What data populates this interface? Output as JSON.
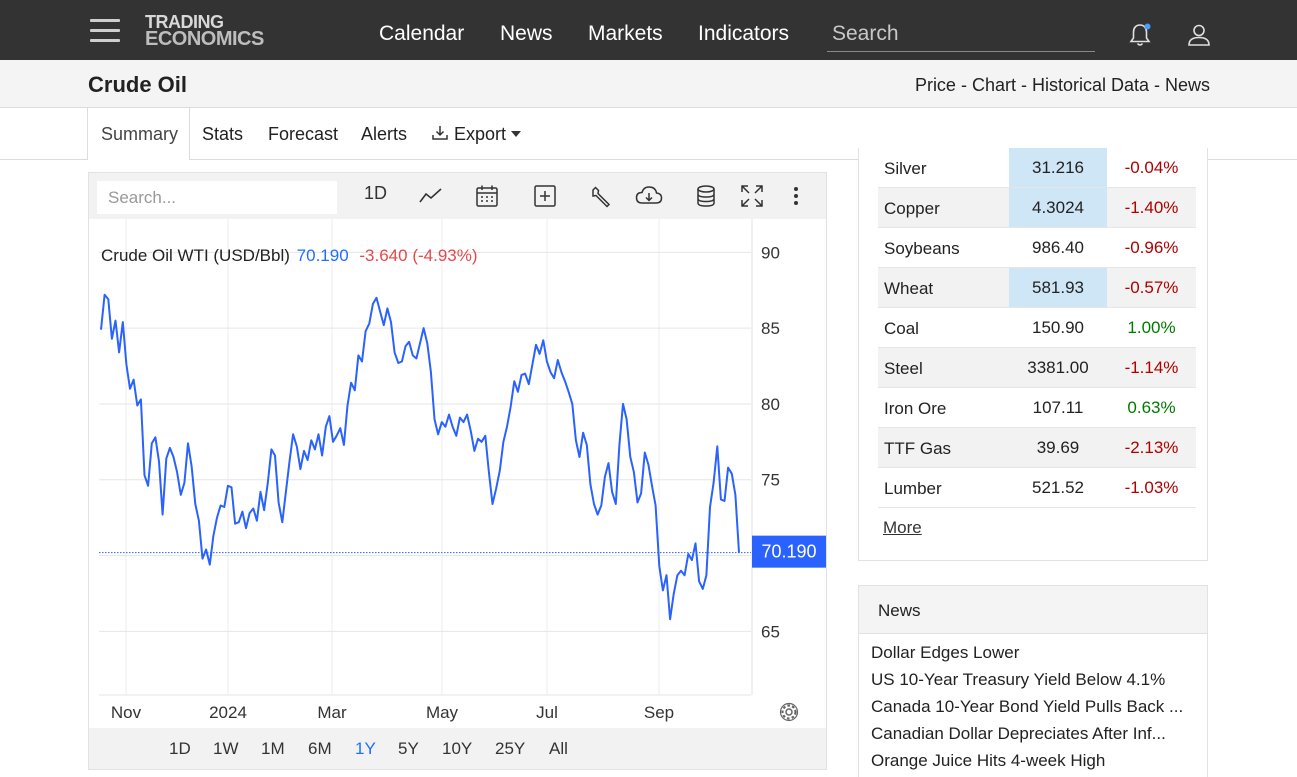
{
  "nav": {
    "logo_line1": "TRADING",
    "logo_line2": "ECONOMICS",
    "links": [
      "Calendar",
      "News",
      "Markets",
      "Indicators"
    ],
    "search_placeholder": "Search"
  },
  "titlebar": {
    "title": "Crude Oil",
    "links": "Price - Chart - Historical Data - News"
  },
  "tabs": {
    "items": [
      "Summary",
      "Stats",
      "Forecast",
      "Alerts",
      "Export"
    ],
    "active": "Summary"
  },
  "chart_toolbar": {
    "search_placeholder": "Search...",
    "interval": "1D",
    "icons": [
      "line-chart-icon",
      "calendar-icon",
      "add-box-icon",
      "wrench-icon",
      "download-cloud-icon",
      "database-icon",
      "fullscreen-icon",
      "more-vertical-icon"
    ]
  },
  "chart_legend": {
    "label": "Crude Oil WTI (USD/Bbl)",
    "value": "70.190",
    "change": "-3.640 (-4.93%)"
  },
  "range_buttons": [
    "1D",
    "1W",
    "1M",
    "6M",
    "1Y",
    "5Y",
    "10Y",
    "25Y",
    "All"
  ],
  "range_active": "1Y",
  "chart_data": {
    "type": "line",
    "title": "Crude Oil WTI (USD/Bbl)",
    "xlabel": "",
    "ylabel": "",
    "x_ticks": [
      "Nov",
      "2024",
      "Mar",
      "May",
      "Jul",
      "Sep"
    ],
    "y_ticks": [
      65,
      70,
      75,
      80,
      85,
      90
    ],
    "ylim": [
      60.8,
      92.2
    ],
    "current_value_label": "70.190",
    "current_value": 70.19,
    "grid": true,
    "series": [
      {
        "color": "#2962ff",
        "values": [
          84.9,
          87.2,
          86.9,
          84.3,
          85.5,
          83.4,
          85.4,
          82.6,
          81.0,
          81.6,
          79.9,
          80.3,
          75.3,
          74.6,
          77.4,
          77.8,
          76.2,
          72.7,
          76.4,
          77.1,
          76.5,
          75.5,
          74.0,
          74.8,
          77.4,
          75.9,
          73.4,
          72.3,
          69.8,
          70.4,
          69.4,
          71.3,
          72.5,
          73.3,
          73.2,
          74.6,
          74.5,
          72.1,
          72.2,
          72.9,
          71.8,
          72.8,
          73.1,
          72.3,
          74.2,
          73.0,
          74.8,
          77.0,
          76.6,
          73.5,
          72.2,
          74.2,
          76.2,
          78.0,
          77.2,
          75.7,
          76.9,
          76.3,
          77.6,
          77.0,
          78.0,
          76.6,
          78.5,
          79.2,
          77.5,
          77.9,
          78.4,
          77.3,
          79.9,
          81.4,
          80.9,
          83.2,
          82.8,
          84.8,
          85.3,
          86.6,
          87.0,
          86.1,
          85.2,
          86.3,
          85.4,
          83.4,
          82.7,
          82.8,
          83.8,
          84.1,
          83.2,
          83.0,
          84.0,
          85.0,
          84.0,
          82.1,
          79.0,
          78.0,
          78.8,
          78.5,
          79.3,
          78.5,
          77.9,
          79.1,
          78.8,
          79.3,
          78.2,
          76.9,
          77.7,
          77.5,
          77.9,
          75.5,
          73.4,
          74.4,
          75.6,
          77.5,
          78.5,
          79.8,
          81.5,
          80.8,
          81.9,
          82.0,
          81.3,
          82.6,
          83.9,
          83.3,
          84.2,
          82.8,
          82.1,
          81.7,
          82.9,
          82.1,
          81.5,
          80.8,
          80.0,
          77.6,
          76.5,
          78.1,
          77.3,
          74.7,
          73.4,
          72.7,
          73.3,
          75.2,
          76.1,
          74.2,
          73.4,
          77.3,
          80.0,
          79.0,
          76.5,
          75.5,
          73.5,
          74.1,
          76.8,
          76.0,
          74.6,
          73.3,
          69.3,
          67.7,
          68.7,
          65.8,
          67.5,
          68.7,
          69.0,
          68.7,
          70.1,
          69.7,
          70.8,
          68.3,
          67.8,
          68.7,
          73.2,
          74.8,
          77.2,
          73.7,
          73.6,
          75.8,
          75.4,
          74.0,
          70.19
        ]
      }
    ]
  },
  "commodities": [
    {
      "name": "Silver",
      "price": "31.216",
      "change": "-0.04%",
      "highlight": true,
      "direction": "neg"
    },
    {
      "name": "Copper",
      "price": "4.3024",
      "change": "-1.40%",
      "highlight": true,
      "direction": "neg"
    },
    {
      "name": "Soybeans",
      "price": "986.40",
      "change": "-0.96%",
      "highlight": false,
      "direction": "neg"
    },
    {
      "name": "Wheat",
      "price": "581.93",
      "change": "-0.57%",
      "highlight": true,
      "direction": "neg"
    },
    {
      "name": "Coal",
      "price": "150.90",
      "change": "1.00%",
      "highlight": false,
      "direction": "pos"
    },
    {
      "name": "Steel",
      "price": "3381.00",
      "change": "-1.14%",
      "highlight": false,
      "direction": "neg"
    },
    {
      "name": "Iron Ore",
      "price": "107.11",
      "change": "0.63%",
      "highlight": false,
      "direction": "pos"
    },
    {
      "name": "TTF Gas",
      "price": "39.69",
      "change": "-2.13%",
      "highlight": false,
      "direction": "neg"
    },
    {
      "name": "Lumber",
      "price": "521.52",
      "change": "-1.03%",
      "highlight": false,
      "direction": "neg"
    }
  ],
  "commodities_more": "More",
  "news": {
    "header": "News",
    "items": [
      "Dollar Edges Lower",
      "US 10-Year Treasury Yield Below 4.1%",
      "Canada 10-Year Bond Yield Pulls Back ...",
      "Canadian Dollar Depreciates After Inf...",
      "Orange Juice Hits 4-week High"
    ]
  },
  "colors": {
    "nav_bg": "#333333",
    "accent_blue": "#2962ff",
    "negative": "#b00000",
    "positive": "#007a00",
    "price_highlight": "#cfe6f7"
  }
}
